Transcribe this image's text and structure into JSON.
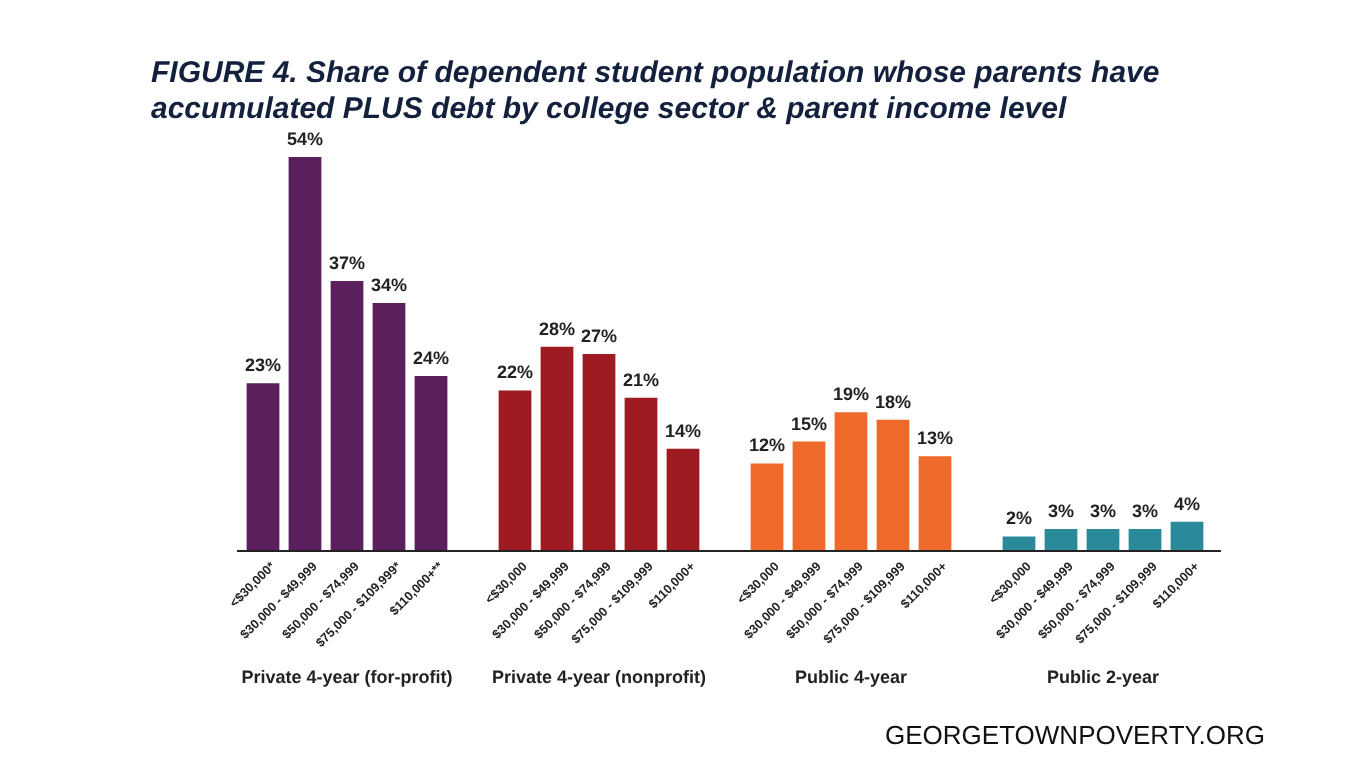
{
  "chart_data": {
    "type": "bar",
    "title": "FIGURE 4. Share of dependent student population whose parents have accumulated PLUS debt by college sector & parent income level",
    "categories": [
      "<$30,000*",
      "$30,000 - $49,999",
      "$50,000 - $74,999",
      "$75,000 - $109,999*",
      "$110,000+**",
      null,
      "<$30,000",
      "$30,000 - $49,999",
      "$50,000 - $74,999",
      "$75,000 - $109,999",
      "$110,000+",
      null,
      "<$30,000",
      "$30,000 - $49,999",
      "$50,000 - $74,999",
      "$75,000 - $109,999",
      "$110,000+",
      null,
      "<$30,000",
      "$30,000 - $49,999",
      "$50,000 - $74,999",
      "$75,000 - $109,999",
      "$110,000+"
    ],
    "values": [
      23,
      54,
      37,
      34,
      24,
      null,
      22,
      28,
      27,
      21,
      14,
      null,
      12,
      15,
      19,
      18,
      13,
      null,
      2,
      3,
      3,
      3,
      4
    ],
    "colors": [
      "#5b1f5e",
      "#5b1f5e",
      "#5b1f5e",
      "#5b1f5e",
      "#5b1f5e",
      null,
      "#9e1b22",
      "#9e1b22",
      "#9e1b22",
      "#9e1b22",
      "#9e1b22",
      null,
      "#ee6a2a",
      "#ee6a2a",
      "#ee6a2a",
      "#ee6a2a",
      "#ee6a2a",
      null,
      "#2a8a99",
      "#2a8a99",
      "#2a8a99",
      "#2a8a99",
      "#2a8a99"
    ],
    "value_labels": [
      "23%",
      "54%",
      "37%",
      "34%",
      "24%",
      null,
      "22%",
      "28%",
      "27%",
      "21%",
      "14%",
      null,
      "12%",
      "15%",
      "19%",
      "18%",
      "13%",
      null,
      "2%",
      "3%",
      "3%",
      "3%",
      "4%"
    ],
    "annotations": [
      "Private 4-year (for-profit)",
      "Private 4-year (nonprofit)",
      "Public 4-year",
      "Public 2-year",
      "GEORGETOWNPOVERTY.ORG"
    ],
    "grid": false
  }
}
